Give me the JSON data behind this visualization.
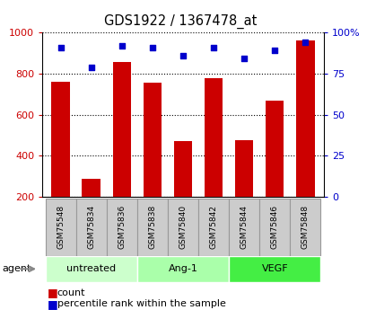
{
  "title": "GDS1922 / 1367478_at",
  "samples": [
    "GSM75548",
    "GSM75834",
    "GSM75836",
    "GSM75838",
    "GSM75840",
    "GSM75842",
    "GSM75844",
    "GSM75846",
    "GSM75848"
  ],
  "counts": [
    760,
    290,
    855,
    757,
    470,
    778,
    475,
    670,
    960
  ],
  "percentiles": [
    91,
    79,
    92,
    91,
    86,
    91,
    84,
    89,
    94
  ],
  "groups": [
    {
      "label": "untreated",
      "indices": [
        0,
        1,
        2
      ],
      "color": "#ccffcc"
    },
    {
      "label": "Ang-1",
      "indices": [
        3,
        4,
        5
      ],
      "color": "#aaffaa"
    },
    {
      "label": "VEGF",
      "indices": [
        6,
        7,
        8
      ],
      "color": "#44ee44"
    }
  ],
  "bar_color": "#cc0000",
  "dot_color": "#0000cc",
  "ylim_left": [
    200,
    1000
  ],
  "ylim_right": [
    0,
    100
  ],
  "yticks_left": [
    200,
    400,
    600,
    800,
    1000
  ],
  "yticks_right": [
    0,
    25,
    50,
    75,
    100
  ],
  "background_color": "#ffffff",
  "tick_label_color_left": "#cc0000",
  "tick_label_color_right": "#0000cc",
  "legend_count_color": "#cc0000",
  "legend_pct_color": "#0000cc",
  "label_box_color": "#cccccc",
  "label_box_edge": "#999999"
}
